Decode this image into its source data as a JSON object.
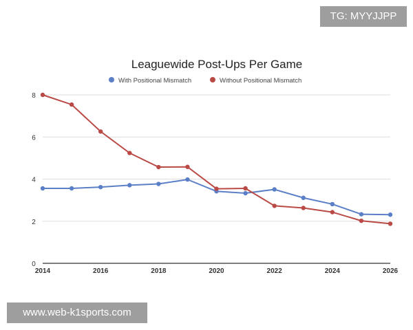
{
  "watermarks": {
    "top": "TG: MYYJJPP",
    "bottom": "www.web-k1sports.com"
  },
  "chart_data": {
    "type": "line",
    "title": "Leaguewide Post-Ups Per Game",
    "xlabel": "",
    "ylabel": "",
    "x": [
      2014,
      2015,
      2016,
      2017,
      2018,
      2019,
      2020,
      2021,
      2022,
      2023,
      2024,
      2025,
      2026
    ],
    "xlim": [
      2014,
      2026
    ],
    "ylim": [
      0,
      8
    ],
    "xticks": [
      "2014",
      "2016",
      "2018",
      "2020",
      "2022",
      "2024",
      "2026"
    ],
    "yticks": [
      "0",
      "2",
      "4",
      "6",
      "8"
    ],
    "grid": true,
    "legend_position": "top-center",
    "series": [
      {
        "name": "With Positional Mismatch",
        "color": "#5b7fc6",
        "values": [
          3.56,
          3.56,
          3.62,
          3.71,
          3.77,
          3.98,
          3.42,
          3.33,
          3.51,
          3.11,
          2.81,
          2.33,
          2.31
        ]
      },
      {
        "name": "Without Positional Mismatch",
        "color": "#b94a45",
        "values": [
          8.0,
          7.54,
          6.26,
          5.24,
          4.57,
          4.58,
          3.54,
          3.56,
          2.73,
          2.63,
          2.43,
          2.02,
          1.88
        ]
      }
    ]
  }
}
